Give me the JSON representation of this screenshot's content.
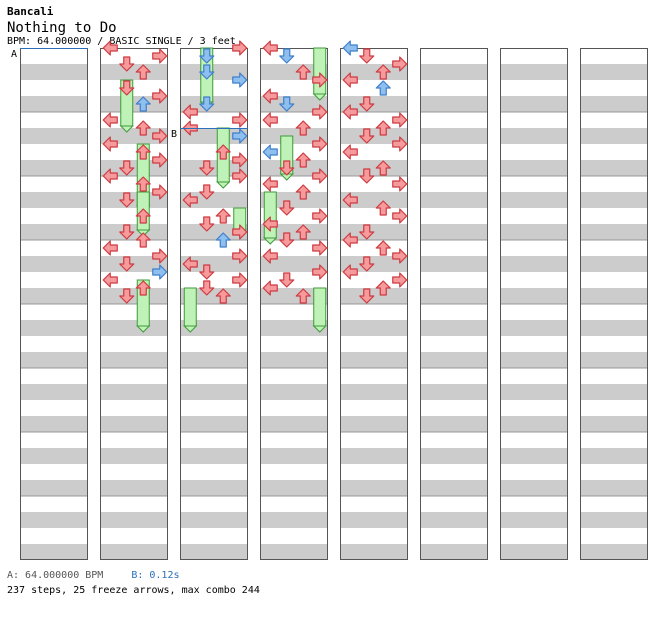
{
  "song": {
    "artist": "Bancali",
    "title": "Nothing to Do",
    "meta": "BPM: 64.000000 / BASIC SINGLE / 3 feet"
  },
  "markers": [
    {
      "label": "A",
      "measure": 0,
      "pos": 0
    },
    {
      "label": "B",
      "measure": 17,
      "pos": 0.25
    }
  ],
  "legend": {
    "a": "A: 64.000000 BPM",
    "b": "B: 0.12s"
  },
  "stats": "237 steps, 25 freeze arrows, max combo 244",
  "colors": {
    "quarter": "#f79a9c",
    "eighth": "#8fbfee",
    "freeze": "#bff2b6",
    "band": "#cccccc"
  },
  "chart_data": {
    "type": "table",
    "columns": 8,
    "measures_per_column": 8,
    "total_measures": 64,
    "lanes": [
      "left",
      "down",
      "up",
      "right"
    ],
    "notes": [
      [
        8,
        0,
        "q"
      ],
      [
        8.125,
        3,
        "q"
      ],
      [
        8.25,
        1,
        "q"
      ],
      [
        8.375,
        2,
        "q"
      ],
      [
        8.625,
        1,
        "q"
      ],
      [
        8.75,
        3,
        "q"
      ],
      [
        8.875,
        2,
        "e"
      ],
      [
        9.125,
        0,
        "q"
      ],
      [
        9.25,
        2,
        "q"
      ],
      [
        9.375,
        3,
        "q"
      ],
      [
        9.5,
        0,
        "q"
      ],
      [
        9.625,
        2,
        "q"
      ],
      [
        9.75,
        3,
        "q"
      ],
      [
        9.875,
        1,
        "q"
      ],
      [
        10,
        0,
        "q"
      ],
      [
        10.125,
        2,
        "q"
      ],
      [
        10.25,
        3,
        "q"
      ],
      [
        10.375,
        1,
        "q"
      ],
      [
        10.625,
        2,
        "q"
      ],
      [
        10.875,
        1,
        "q"
      ],
      [
        11,
        2,
        "q"
      ],
      [
        11.125,
        0,
        "q"
      ],
      [
        11.25,
        3,
        "q"
      ],
      [
        11.375,
        1,
        "q"
      ],
      [
        11.5,
        3,
        "e"
      ],
      [
        11.625,
        0,
        "q"
      ],
      [
        11.75,
        2,
        "q"
      ],
      [
        11.875,
        1,
        "q"
      ],
      [
        16,
        3,
        "q"
      ],
      [
        16.125,
        1,
        "e"
      ],
      [
        16.375,
        1,
        "e"
      ],
      [
        16.5,
        3,
        "e"
      ],
      [
        16.875,
        1,
        "e"
      ],
      [
        17,
        0,
        "q"
      ],
      [
        17.125,
        3,
        "q"
      ],
      [
        17.25,
        0,
        "q"
      ],
      [
        17.375,
        3,
        "e"
      ],
      [
        17.625,
        2,
        "q"
      ],
      [
        17.75,
        3,
        "q"
      ],
      [
        17.875,
        1,
        "q"
      ],
      [
        18,
        3,
        "q"
      ],
      [
        18.25,
        1,
        "q"
      ],
      [
        18.375,
        0,
        "q"
      ],
      [
        18.625,
        2,
        "q"
      ],
      [
        18.75,
        1,
        "q"
      ],
      [
        18.875,
        3,
        "q"
      ],
      [
        19,
        2,
        "e"
      ],
      [
        19.25,
        3,
        "q"
      ],
      [
        19.375,
        0,
        "q"
      ],
      [
        19.5,
        1,
        "q"
      ],
      [
        19.625,
        3,
        "q"
      ],
      [
        19.75,
        1,
        "q"
      ],
      [
        19.875,
        2,
        "q"
      ],
      [
        24,
        0,
        "q"
      ],
      [
        24.125,
        1,
        "e"
      ],
      [
        24.375,
        2,
        "q"
      ],
      [
        24.5,
        3,
        "q"
      ],
      [
        24.75,
        0,
        "q"
      ],
      [
        24.875,
        1,
        "e"
      ],
      [
        25,
        3,
        "q"
      ],
      [
        25.125,
        0,
        "q"
      ],
      [
        25.25,
        2,
        "q"
      ],
      [
        25.5,
        3,
        "q"
      ],
      [
        25.625,
        0,
        "e"
      ],
      [
        25.75,
        2,
        "q"
      ],
      [
        25.875,
        1,
        "q"
      ],
      [
        26,
        3,
        "q"
      ],
      [
        26.125,
        0,
        "q"
      ],
      [
        26.25,
        2,
        "q"
      ],
      [
        26.5,
        1,
        "q"
      ],
      [
        26.625,
        3,
        "q"
      ],
      [
        26.75,
        0,
        "q"
      ],
      [
        26.875,
        2,
        "q"
      ],
      [
        27,
        1,
        "q"
      ],
      [
        27.125,
        3,
        "q"
      ],
      [
        27.25,
        0,
        "q"
      ],
      [
        27.5,
        3,
        "q"
      ],
      [
        27.625,
        1,
        "q"
      ],
      [
        27.75,
        0,
        "q"
      ],
      [
        27.875,
        2,
        "q"
      ],
      [
        32,
        0,
        "e"
      ],
      [
        32.125,
        1,
        "q"
      ],
      [
        32.25,
        3,
        "q"
      ],
      [
        32.375,
        2,
        "q"
      ],
      [
        32.5,
        0,
        "q"
      ],
      [
        32.625,
        2,
        "e"
      ],
      [
        32.875,
        1,
        "q"
      ],
      [
        33,
        0,
        "q"
      ],
      [
        33.125,
        3,
        "q"
      ],
      [
        33.25,
        2,
        "q"
      ],
      [
        33.375,
        1,
        "q"
      ],
      [
        33.5,
        3,
        "q"
      ],
      [
        33.625,
        0,
        "q"
      ],
      [
        33.875,
        2,
        "q"
      ],
      [
        34,
        1,
        "q"
      ],
      [
        34.125,
        3,
        "q"
      ],
      [
        34.375,
        0,
        "q"
      ],
      [
        34.5,
        2,
        "q"
      ],
      [
        34.625,
        3,
        "q"
      ],
      [
        34.875,
        1,
        "q"
      ],
      [
        35,
        0,
        "q"
      ],
      [
        35.125,
        2,
        "q"
      ],
      [
        35.25,
        3,
        "q"
      ],
      [
        35.375,
        1,
        "q"
      ],
      [
        35.5,
        0,
        "q"
      ],
      [
        35.625,
        3,
        "q"
      ],
      [
        35.75,
        2,
        "q"
      ],
      [
        35.875,
        1,
        "q"
      ]
    ],
    "freezes": [
      [
        8.5,
        0.625,
        1
      ],
      [
        9.5,
        0.875,
        2
      ],
      [
        10.25,
        0.5,
        2
      ],
      [
        11.625,
        0.625,
        2
      ],
      [
        16.0,
        0.75,
        1
      ],
      [
        17.25,
        0.75,
        2
      ],
      [
        18.5,
        0.25,
        3
      ],
      [
        19.75,
        0.5,
        0
      ],
      [
        24.0,
        0.625,
        3
      ],
      [
        25.375,
        0.5,
        1
      ],
      [
        26.25,
        0.625,
        0
      ],
      [
        27.75,
        0.5,
        3
      ]
    ]
  }
}
